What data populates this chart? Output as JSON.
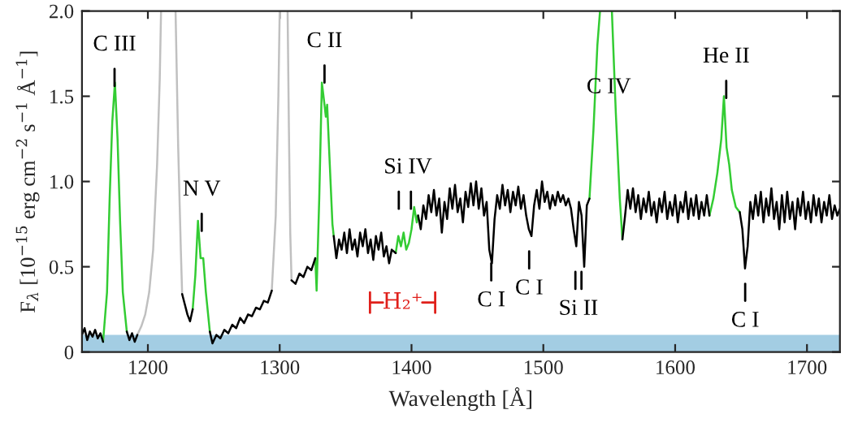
{
  "chart_data": {
    "type": "line",
    "xlabel": "Wavelength [Å]",
    "ylabel": "F$_{λ}$ [10$^{−15}$ erg cm$^{−2}$ s$^{−1}$ Å$^{−1}$]",
    "xlim": [
      1150,
      1725
    ],
    "xticks": [
      1200,
      1300,
      1400,
      1500,
      1600,
      1700
    ],
    "ylim": [
      0,
      2.0
    ],
    "yticks": [
      0,
      0.5,
      {
        "value": 1.0,
        "label": "1.0"
      },
      1.5,
      {
        "value": 2.0,
        "label": "2.0"
      }
    ],
    "grid": false,
    "legend": false,
    "series": [
      {
        "color": "#000000",
        "x": [
          1150,
          1152,
          1154,
          1156,
          1158,
          1160,
          1162,
          1164,
          1166,
          1170,
          1184,
          1186,
          1188,
          1190,
          1192,
          1200,
          1226,
          1228,
          1230,
          1232,
          1234,
          1240,
          1247,
          1249,
          1252,
          1255,
          1258,
          1261,
          1264,
          1267,
          1270,
          1273,
          1276,
          1279,
          1282,
          1285,
          1288,
          1291,
          1294,
          1300,
          1309,
          1312,
          1315,
          1318,
          1321,
          1324,
          1327,
          1332,
          1341,
          1343,
          1345,
          1347,
          1349,
          1351,
          1353,
          1355,
          1357,
          1359,
          1361,
          1363,
          1365,
          1367,
          1369,
          1371,
          1373,
          1375,
          1377,
          1379,
          1381,
          1383,
          1385,
          1388,
          1395,
          1405,
          1407,
          1409,
          1411,
          1413,
          1415,
          1417,
          1419,
          1421,
          1423,
          1425,
          1427,
          1429,
          1431,
          1433,
          1435,
          1437,
          1439,
          1441,
          1443,
          1445,
          1447,
          1449,
          1451,
          1453,
          1455,
          1457,
          1459,
          1461,
          1463,
          1465,
          1467,
          1469,
          1471,
          1473,
          1475,
          1477,
          1479,
          1481,
          1483,
          1485,
          1487,
          1489,
          1491,
          1493,
          1495,
          1497,
          1499,
          1501,
          1503,
          1505,
          1507,
          1509,
          1511,
          1513,
          1515,
          1517,
          1519,
          1521,
          1523,
          1525,
          1527,
          1529,
          1531,
          1533,
          1535,
          1545,
          1560,
          1562,
          1564,
          1566,
          1568,
          1570,
          1572,
          1574,
          1576,
          1578,
          1580,
          1582,
          1584,
          1586,
          1588,
          1590,
          1592,
          1594,
          1596,
          1598,
          1600,
          1602,
          1604,
          1606,
          1608,
          1610,
          1612,
          1614,
          1616,
          1618,
          1620,
          1622,
          1624,
          1626,
          1635,
          1649,
          1651,
          1653,
          1655,
          1657,
          1659,
          1661,
          1663,
          1665,
          1667,
          1669,
          1671,
          1673,
          1675,
          1677,
          1679,
          1681,
          1683,
          1685,
          1687,
          1689,
          1691,
          1693,
          1695,
          1697,
          1699,
          1701,
          1703,
          1705,
          1707,
          1709,
          1711,
          1713,
          1715,
          1717,
          1719,
          1721,
          1723,
          1725
        ],
        "values": [
          0.1,
          0.14,
          0.07,
          0.12,
          0.09,
          0.13,
          0.08,
          0.11,
          0.06,
          null,
          0.12,
          0.07,
          0.11,
          0.06,
          0.1,
          null,
          0.34,
          0.28,
          0.22,
          0.18,
          0.25,
          null,
          0.12,
          0.05,
          0.1,
          0.08,
          0.13,
          0.11,
          0.16,
          0.14,
          0.2,
          0.17,
          0.22,
          0.21,
          0.26,
          0.25,
          0.3,
          0.29,
          0.36,
          null,
          0.42,
          0.4,
          0.46,
          0.44,
          0.5,
          0.48,
          0.55,
          null,
          0.68,
          0.55,
          0.66,
          0.6,
          0.7,
          0.58,
          0.72,
          0.6,
          0.66,
          0.56,
          0.7,
          0.62,
          0.72,
          0.58,
          0.66,
          0.54,
          0.68,
          0.6,
          0.7,
          0.56,
          0.62,
          0.52,
          0.6,
          0.58,
          null,
          0.8,
          0.72,
          0.86,
          0.78,
          0.92,
          0.82,
          0.95,
          0.8,
          0.9,
          0.7,
          0.88,
          0.78,
          0.96,
          0.84,
          0.98,
          0.82,
          0.9,
          0.76,
          0.94,
          0.85,
          0.99,
          0.86,
          1.0,
          0.84,
          0.96,
          0.8,
          0.88,
          0.6,
          0.52,
          0.78,
          0.92,
          0.84,
          0.98,
          0.86,
          0.95,
          0.82,
          0.94,
          0.86,
          0.97,
          0.84,
          0.92,
          0.8,
          0.72,
          0.68,
          0.86,
          0.95,
          0.84,
          1.0,
          0.88,
          0.94,
          0.84,
          0.92,
          0.86,
          0.94,
          0.88,
          0.92,
          0.86,
          0.9,
          0.84,
          0.72,
          0.62,
          0.88,
          0.8,
          0.5,
          0.86,
          0.9,
          null,
          0.66,
          0.8,
          0.95,
          0.84,
          0.96,
          0.82,
          0.92,
          0.78,
          0.9,
          0.82,
          0.94,
          0.8,
          0.88,
          0.76,
          0.9,
          0.82,
          0.94,
          0.78,
          0.88,
          0.8,
          0.92,
          0.76,
          0.88,
          0.82,
          0.94,
          0.78,
          0.9,
          0.8,
          0.92,
          0.78,
          0.88,
          0.8,
          0.92,
          0.8,
          null,
          0.82,
          0.72,
          0.49,
          0.62,
          0.88,
          0.78,
          0.92,
          0.8,
          0.94,
          0.76,
          0.9,
          0.8,
          0.96,
          0.78,
          0.88,
          0.72,
          0.92,
          0.76,
          0.94,
          0.78,
          0.88,
          0.72,
          0.9,
          0.8,
          0.94,
          0.78,
          0.88,
          0.76,
          0.92,
          0.8,
          0.9,
          0.76,
          0.88,
          0.8,
          0.92,
          0.78,
          0.86,
          0.8,
          0.84
        ]
      },
      {
        "color": "#33cc33",
        "x": [
          1166,
          1169,
          1171,
          1173,
          1175,
          1177,
          1179,
          1181,
          1184,
          1200,
          1234,
          1236,
          1238,
          1240,
          1242,
          1244,
          1247,
          1300,
          1327,
          1328,
          1330,
          1332,
          1334,
          1335,
          1336,
          1338,
          1340,
          1341,
          1360,
          1388,
          1390,
          1392,
          1394,
          1396,
          1398,
          1400,
          1402,
          1404,
          1405,
          1500,
          1535,
          1538,
          1541,
          1543,
          1545,
          1552,
          1555,
          1558,
          1560,
          1600,
          1626,
          1629,
          1632,
          1635,
          1637,
          1639,
          1641,
          1643,
          1646,
          1649
        ],
        "values": [
          0.06,
          0.35,
          0.9,
          1.35,
          1.58,
          1.25,
          0.75,
          0.35,
          0.12,
          null,
          0.25,
          0.45,
          0.77,
          0.55,
          0.55,
          0.35,
          0.12,
          null,
          0.55,
          0.36,
          0.9,
          1.58,
          1.45,
          1.38,
          1.45,
          1.1,
          0.75,
          0.68,
          null,
          0.58,
          0.68,
          0.62,
          0.7,
          0.6,
          0.64,
          0.72,
          0.85,
          0.76,
          0.8,
          null,
          0.9,
          1.3,
          1.8,
          2.0,
          null,
          2.0,
          1.4,
          0.9,
          0.66,
          null,
          0.8,
          0.9,
          1.05,
          1.25,
          1.5,
          1.2,
          1.1,
          0.95,
          0.85,
          0.82
        ]
      },
      {
        "color": "#c0c0c0",
        "x": [
          1192,
          1195,
          1198,
          1201,
          1204,
          1207,
          1209,
          1210,
          1215,
          1221,
          1223,
          1225,
          1226,
          1260,
          1294,
          1297,
          1299,
          1300,
          1303,
          1306,
          1307,
          1308,
          1309
        ],
        "values": [
          0.1,
          0.15,
          0.22,
          0.35,
          0.6,
          1.1,
          1.6,
          2.0,
          null,
          2.0,
          1.2,
          0.6,
          0.34,
          null,
          0.36,
          0.8,
          1.5,
          2.0,
          null,
          2.0,
          1.3,
          0.7,
          0.42
        ]
      }
    ],
    "bands": [
      {
        "axis": "y",
        "from": 0,
        "to": 0.1,
        "color": "#a3cde3"
      }
    ],
    "annotations": [
      "C III",
      "N V",
      "C II",
      "Si IV",
      "C IV",
      "He II",
      "C I",
      "C I",
      "Si II",
      "C I",
      "H₂⁺"
    ]
  }
}
